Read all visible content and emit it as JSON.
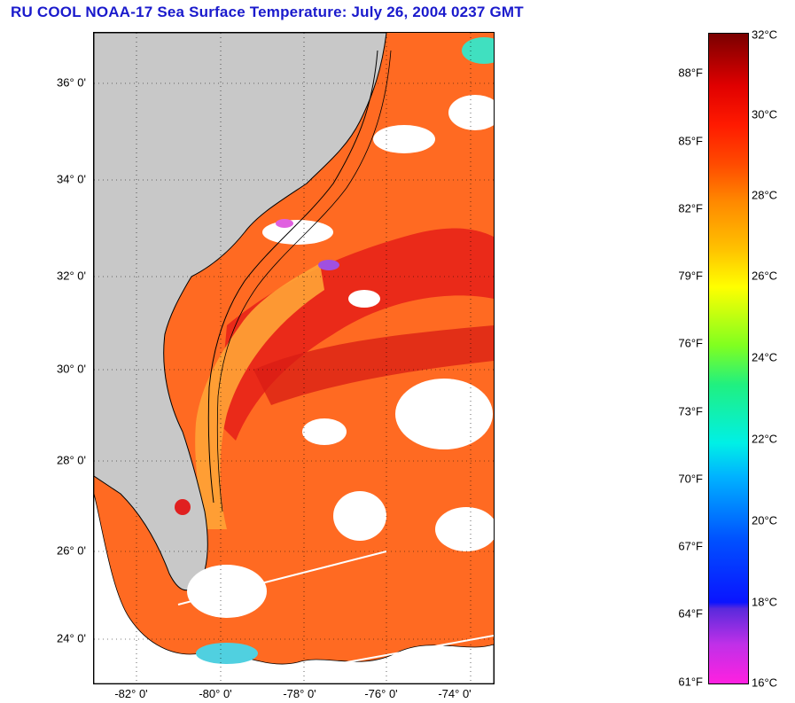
{
  "title": "RU COOL  NOAA-17  Sea Surface Temperature:  July 26, 2004 0237 GMT",
  "map": {
    "latitude_labels": [
      "36° 0'",
      "34° 0'",
      "32° 0'",
      "30° 0'",
      "28° 0'",
      "26° 0'",
      "24° 0'"
    ],
    "longitude_labels": [
      "-82° 0'",
      "-80° 0'",
      "-78° 0'",
      "-76° 0'",
      "-74° 0'"
    ],
    "colors": {
      "land": "#c8c8c8",
      "cloud": "#ffffff",
      "warm": "#ff5a1e",
      "hot": "#e02020",
      "shelf": "#ff9a30",
      "cool": "#40e0c0"
    }
  },
  "colorbar": {
    "fahrenheit_labels": [
      "88°F",
      "85°F",
      "82°F",
      "79°F",
      "76°F",
      "73°F",
      "70°F",
      "67°F",
      "64°F",
      "61°F"
    ],
    "celsius_labels": [
      "32°C",
      "30°C",
      "28°C",
      "26°C",
      "24°C",
      "22°C",
      "20°C",
      "18°C",
      "16°C"
    ],
    "min_c": 16,
    "max_c": 32
  }
}
